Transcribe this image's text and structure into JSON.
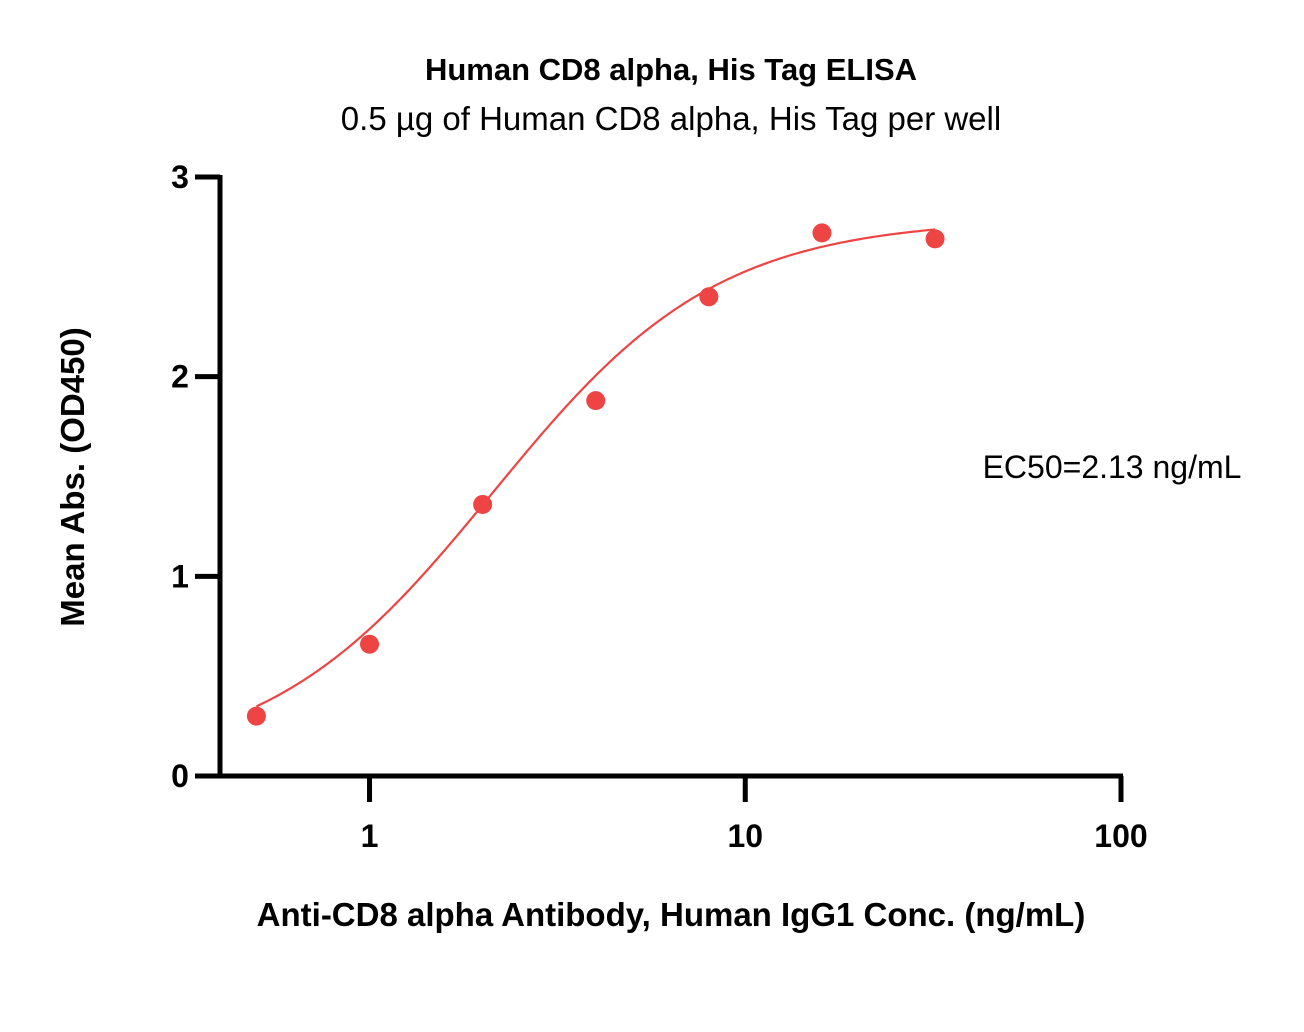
{
  "chart_data": {
    "type": "scatter",
    "title": "Human CD8 alpha, His Tag ELISA",
    "subtitle": "0.5 µg of Human CD8 alpha, His Tag per well",
    "xlabel": "Anti-CD8 alpha Antibody, Human IgG1 Conc. (ng/mL)",
    "ylabel": "Mean Abs. (OD450)",
    "x_scale": "log",
    "xlim": [
      0.4,
      100
    ],
    "ylim": [
      0,
      3
    ],
    "x_ticks": [
      1,
      10,
      100
    ],
    "x_tick_labels": [
      "1",
      "10",
      "100"
    ],
    "y_ticks": [
      0,
      1,
      2,
      3
    ],
    "y_tick_labels": [
      "0",
      "1",
      "2",
      "3"
    ],
    "grid": false,
    "series": [
      {
        "color": "#ee4444",
        "x": [
          0.5,
          1,
          2,
          4,
          8,
          16,
          32
        ],
        "y": [
          0.3,
          0.66,
          1.36,
          1.88,
          2.4,
          2.72,
          2.69
        ]
      }
    ],
    "fit_curve": {
      "model": "4PL",
      "bottom": 0.05,
      "top": 2.79,
      "ec50": 2.13,
      "hill": 1.45,
      "x_range": [
        0.5,
        32
      ]
    },
    "annotations": [
      {
        "text": "EC50=2.13 ng/mL"
      }
    ]
  }
}
